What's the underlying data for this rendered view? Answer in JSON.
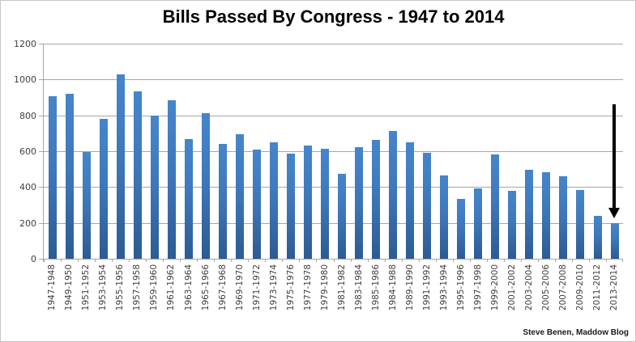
{
  "chart_data": {
    "type": "bar",
    "title": "Bills Passed By Congress - 1947 to 2014",
    "attribution": "Steve Benen, Maddow Blog",
    "categories": [
      "1947-1948",
      "1949-1950",
      "1951-1952",
      "1953-1954",
      "1955-1956",
      "1957-1958",
      "1959-1960",
      "1961-1962",
      "1963-1964",
      "1965-1966",
      "1967-1968",
      "1969-1970",
      "1971-1972",
      "1973-1974",
      "1975-1976",
      "1977-1978",
      "1979-1980",
      "1981-1982",
      "1983-1984",
      "1985-1986",
      "1984-1988",
      "1989-1990",
      "1991-1992",
      "1993-1994",
      "1995-1996",
      "1997-1998",
      "1999-2000",
      "2001-2002",
      "2003-2004",
      "2005-2006",
      "2007-2008",
      "2009-2010",
      "2011-2012",
      "2013-2014"
    ],
    "values": [
      906,
      921,
      594,
      781,
      1028,
      936,
      800,
      885,
      666,
      810,
      640,
      695,
      607,
      649,
      588,
      633,
      613,
      473,
      623,
      664,
      713,
      650,
      590,
      465,
      333,
      394,
      580,
      377,
      498,
      482,
      460,
      383,
      238,
      198
    ],
    "xlabel": "",
    "ylabel": "",
    "ylim": [
      0,
      1200
    ],
    "yticks": [
      0,
      200,
      400,
      600,
      800,
      1000,
      1200
    ],
    "grid": true,
    "legend": "none",
    "bar_color_top": "#4685cb",
    "bar_color_bottom": "#2d5b92",
    "axis_color": "#a6a6a6",
    "label_color": "#3f3f3f",
    "annotation": {
      "type": "down-arrow",
      "target_category": "2013-2014",
      "color": "#000000"
    }
  }
}
